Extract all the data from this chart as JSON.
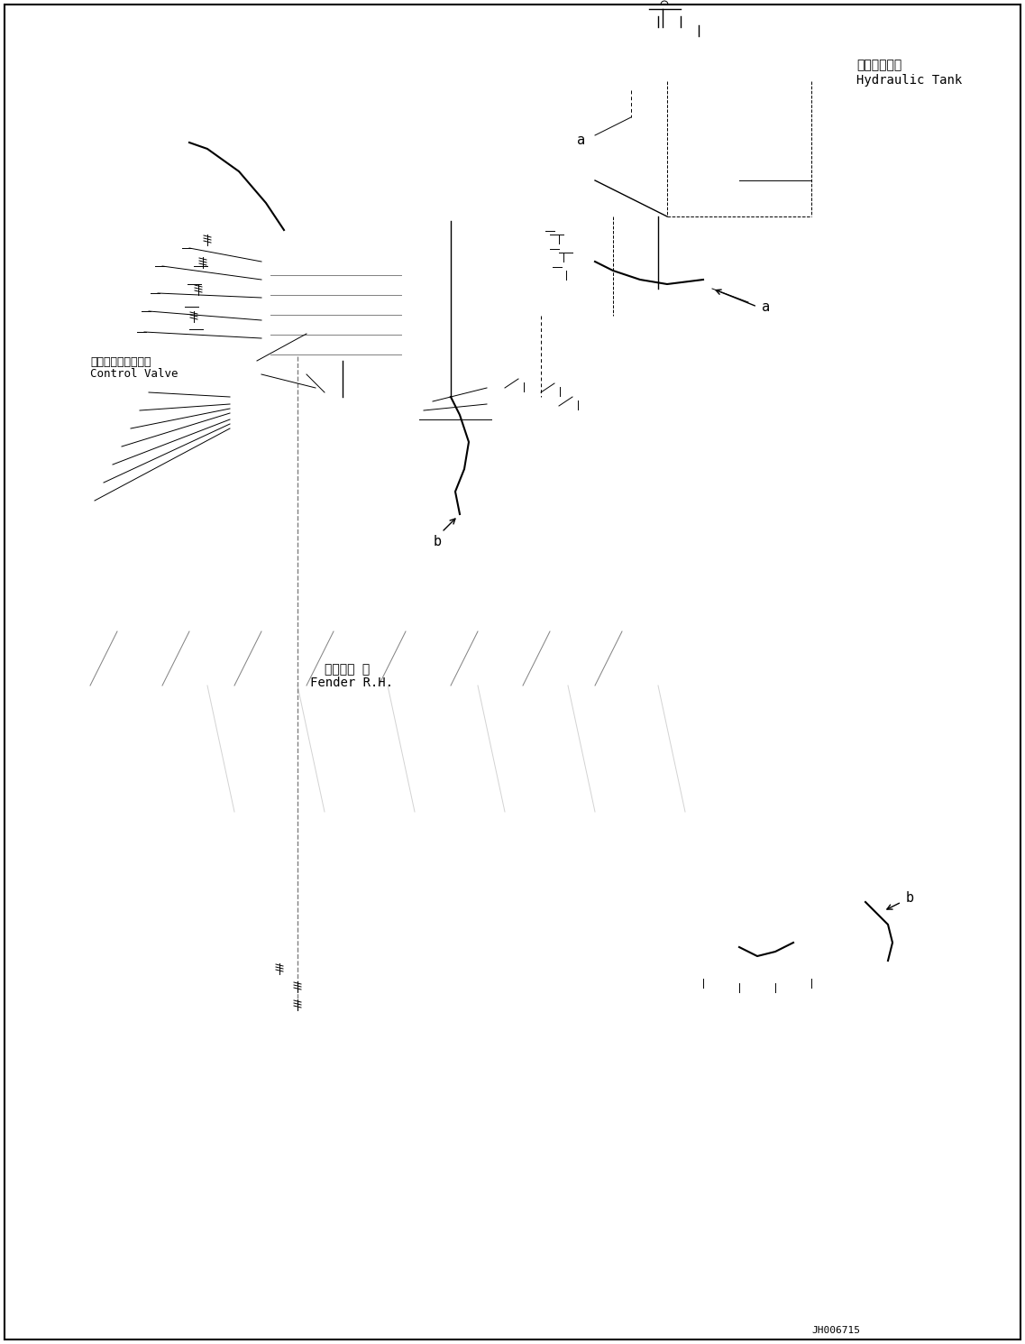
{
  "bg_color": "#ffffff",
  "line_color": "#000000",
  "fig_width": 11.37,
  "fig_height": 14.9,
  "dpi": 100,
  "label_hydraulic_tank_jp": "作動油タンク",
  "label_hydraulic_tank_en": "Hydraulic Tank",
  "label_control_valve_jp": "コントロールバルブ",
  "label_control_valve_en": "Control Valve",
  "label_fender_jp": "フェンダ 右",
  "label_fender_en": "Fender R.H.",
  "label_a1": "a",
  "label_a2": "a",
  "label_b1": "b",
  "label_b2": "b",
  "drawing_number": "JH006715",
  "font_size_label": 9,
  "font_size_drawing": 8,
  "font_size_part": 10
}
